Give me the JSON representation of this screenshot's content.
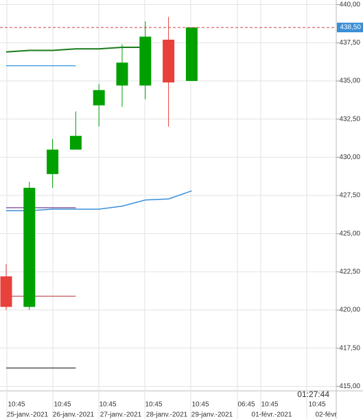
{
  "chart_data": {
    "type": "candlestick",
    "open": [
      422.2,
      420.2,
      428.9,
      430.5,
      433.4,
      434.7,
      434.7,
      437.7,
      435.0
    ],
    "high": [
      423.0,
      428.4,
      431.2,
      433.0,
      434.8,
      437.4,
      438.9,
      439.2,
      438.5
    ],
    "low": [
      420.0,
      420.0,
      428.0,
      430.5,
      432.0,
      433.3,
      433.8,
      432.0,
      435.0
    ],
    "close": [
      420.2,
      428.0,
      430.5,
      431.4,
      434.4,
      436.2,
      437.9,
      434.9,
      438.5
    ],
    "up_color": "#00a000",
    "down_color": "#e8403a",
    "overlays": [
      {
        "color": "#1a7a1a",
        "values": [
          436.9,
          437.0,
          437.0,
          437.1,
          437.1,
          437.2,
          437.2,
          null,
          null
        ]
      },
      {
        "color": "#4ea3e0",
        "values": [
          436.0,
          436.0,
          436.0,
          436.0,
          null,
          null,
          null,
          null,
          null
        ]
      },
      {
        "color": "#3a8fd6",
        "values": [
          426.5,
          426.5,
          426.6,
          426.6,
          426.6,
          426.8,
          427.2,
          427.27,
          427.8
        ]
      },
      {
        "color": "#8a5fa8",
        "values": [
          426.7,
          426.7,
          426.7,
          426.7,
          null,
          null,
          null,
          null,
          null
        ]
      },
      {
        "color": "#c87070",
        "values": [
          420.9,
          420.9,
          420.9,
          420.9,
          null,
          null,
          null,
          null,
          null
        ]
      },
      {
        "color": "#555555",
        "values": [
          416.2,
          416.2,
          416.2,
          416.2,
          null,
          null,
          null,
          null,
          null
        ]
      }
    ],
    "last_price": {
      "value": 438.5,
      "label": "438,50"
    },
    "ylim": [
      414.7,
      440.3
    ],
    "yticks": [
      {
        "value": 440,
        "label": "440,00"
      },
      {
        "value": 437.5,
        "label": "437,50"
      },
      {
        "value": 435,
        "label": "435,00"
      },
      {
        "value": 432.5,
        "label": "432,50"
      },
      {
        "value": 430,
        "label": "430,00"
      },
      {
        "value": 427.5,
        "label": "427,50"
      },
      {
        "value": 425,
        "label": "425,00"
      },
      {
        "value": 422.5,
        "label": "422,50"
      },
      {
        "value": 420,
        "label": "420,00"
      },
      {
        "value": 417.5,
        "label": "417,50"
      },
      {
        "value": 415,
        "label": "415,00"
      }
    ],
    "time_labels": [
      "10:45",
      "10:45",
      "10:45",
      "10:45",
      "10:45",
      "06:45",
      "10:45",
      "10:45"
    ],
    "date_labels": [
      "25-janv.-2021",
      "26-janv.-2021",
      "27-janv.-2021",
      "28-janv.-2021",
      "29-janv.-2021",
      "01-févr.-2021",
      "02-févr"
    ],
    "clock": "01:27:44",
    "grid": true
  }
}
